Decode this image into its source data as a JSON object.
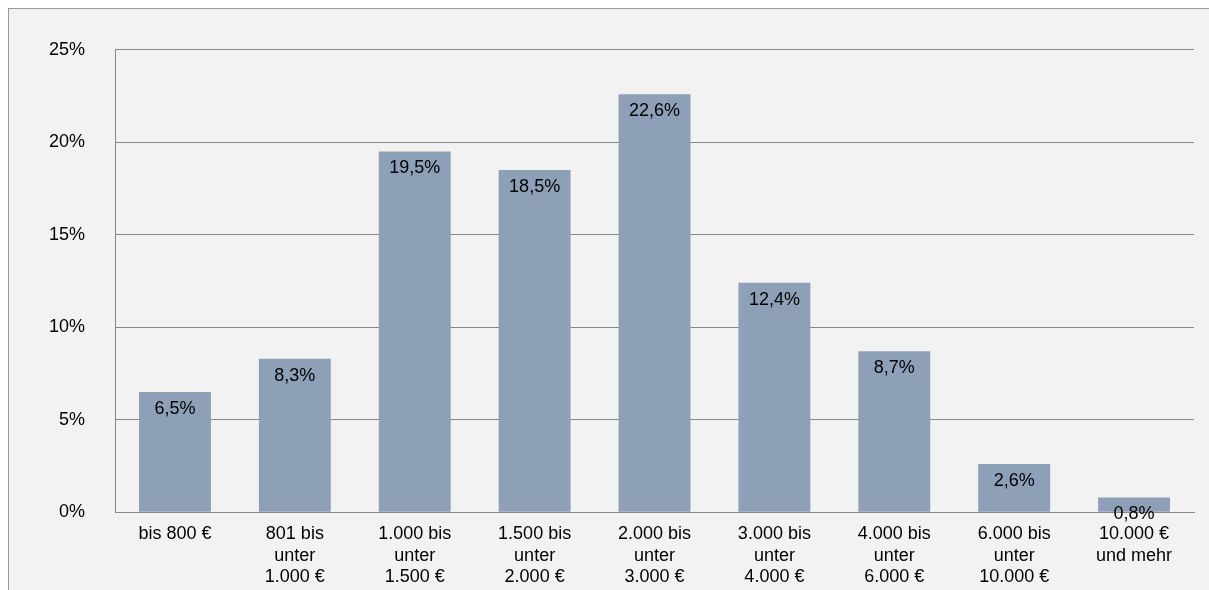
{
  "chart_data": {
    "type": "bar",
    "categories": [
      "bis 800 €",
      "801 bis unter 1.000 €",
      "1.000 bis unter 1.500 €",
      "1.500 bis unter 2.000 €",
      "2.000 bis unter 3.000 €",
      "3.000 bis unter 4.000 €",
      "4.000 bis unter 6.000 €",
      "6.000 bis unter 10.000 €",
      "10.000 € und mehr"
    ],
    "values": [
      6.5,
      8.3,
      19.5,
      18.5,
      22.6,
      12.4,
      8.7,
      2.6,
      0.8
    ],
    "value_labels": [
      "6,5%",
      "8,3%",
      "19,5%",
      "18,5%",
      "22,6%",
      "12,4%",
      "8,7%",
      "2,6%",
      "0,8%"
    ],
    "color": "#8ea0b8",
    "ylim": [
      0,
      25
    ],
    "yticks": [
      {
        "value": 0,
        "label": "0%"
      },
      {
        "value": 5,
        "label": "5%"
      },
      {
        "value": 10,
        "label": "10%"
      },
      {
        "value": 15,
        "label": "15%"
      },
      {
        "value": 20,
        "label": "20%"
      },
      {
        "value": 25,
        "label": "25%"
      }
    ],
    "grid": "y",
    "legend": false
  }
}
